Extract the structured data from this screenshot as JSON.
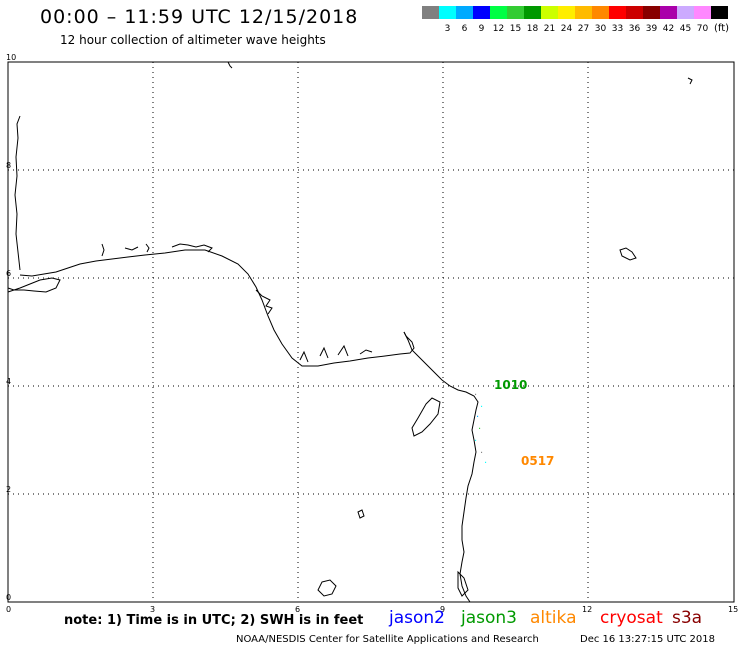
{
  "header": {
    "title": "00:00 – 11:59 UTC 12/15/2018",
    "subtitle": "12 hour collection of altimeter wave heights"
  },
  "legend": {
    "unit": "(ft)",
    "swatches": [
      {
        "color": "#808080",
        "label": ""
      },
      {
        "color": "#00ffff",
        "label": "3"
      },
      {
        "color": "#00aaff",
        "label": "6"
      },
      {
        "color": "#0000ff",
        "label": "9"
      },
      {
        "color": "#00ff44",
        "label": "12"
      },
      {
        "color": "#33cc33",
        "label": "15"
      },
      {
        "color": "#009900",
        "label": "18"
      },
      {
        "color": "#ccff00",
        "label": "21"
      },
      {
        "color": "#ffee00",
        "label": "24"
      },
      {
        "color": "#ffbb00",
        "label": "27"
      },
      {
        "color": "#ff8800",
        "label": "30"
      },
      {
        "color": "#ff0000",
        "label": "33"
      },
      {
        "color": "#cc0000",
        "label": "36"
      },
      {
        "color": "#880000",
        "label": "39"
      },
      {
        "color": "#aa00aa",
        "label": "42"
      },
      {
        "color": "#ccaaff",
        "label": "45"
      },
      {
        "color": "#ff88ff",
        "label": "70"
      },
      {
        "color": "#000000",
        "label": ""
      }
    ]
  },
  "axes": {
    "x_ticks": [
      "0",
      "3",
      "6",
      "9",
      "12",
      "15"
    ],
    "y_ticks": [
      "0",
      "2",
      "4",
      "6",
      "8",
      "10"
    ]
  },
  "track_labels": [
    {
      "text": "1010",
      "color": "#009900"
    },
    {
      "text": "0517",
      "color": "#ff8800"
    }
  ],
  "footer": {
    "note": "note: 1) Time is in UTC; 2) SWH is in feet",
    "satellites": [
      {
        "name": "jason2",
        "color": "#0000ff"
      },
      {
        "name": "jason3",
        "color": "#009900"
      },
      {
        "name": "altika",
        "color": "#ff8800"
      },
      {
        "name": "cryosat",
        "color": "#ff0000"
      },
      {
        "name": "s3a",
        "color": "#880000"
      }
    ],
    "credit": "NOAA/NESDIS Center for Satellite Applications and Research",
    "generated": "Dec 16 13:27:15 UTC 2018"
  }
}
